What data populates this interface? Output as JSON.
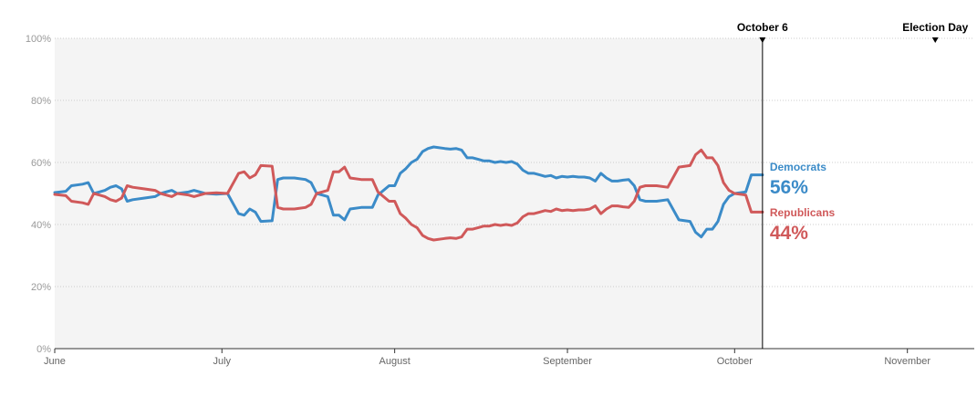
{
  "chart_data": {
    "type": "line",
    "x_axis_type": "date",
    "x_range": [
      "2018-06-01",
      "2018-11-13"
    ],
    "ylim": [
      0,
      100
    ],
    "y_unit": "%",
    "grid": true,
    "y_ticks": [
      {
        "value": 0,
        "label": "0%"
      },
      {
        "value": 20,
        "label": "20%"
      },
      {
        "value": 40,
        "label": "40%"
      },
      {
        "value": 60,
        "label": "60%"
      },
      {
        "value": 80,
        "label": "80%"
      },
      {
        "value": 100,
        "label": "100%"
      }
    ],
    "x_ticks": [
      {
        "date": "2018-06-01",
        "label": "June"
      },
      {
        "date": "2018-07-01",
        "label": "July"
      },
      {
        "date": "2018-08-01",
        "label": "August"
      },
      {
        "date": "2018-09-01",
        "label": "September"
      },
      {
        "date": "2018-10-01",
        "label": "October"
      },
      {
        "date": "2018-11-01",
        "label": "November"
      }
    ],
    "markers": [
      {
        "date": "2018-10-06",
        "label": "October 6"
      },
      {
        "date": "2018-11-06",
        "label": "Election Day"
      }
    ],
    "shaded_until": "2018-10-06",
    "series": [
      {
        "name": "Democrats",
        "final_label": "56%",
        "color": "#3b8bc8",
        "values": [
          [
            "2018-06-01",
            50.3
          ],
          [
            "2018-06-03",
            50.7
          ],
          [
            "2018-06-04",
            52.5
          ],
          [
            "2018-06-06",
            53.0
          ],
          [
            "2018-06-07",
            53.5
          ],
          [
            "2018-06-08",
            50.0
          ],
          [
            "2018-06-09",
            50.5
          ],
          [
            "2018-06-10",
            51.0
          ],
          [
            "2018-06-11",
            52.0
          ],
          [
            "2018-06-12",
            52.5
          ],
          [
            "2018-06-13",
            51.5
          ],
          [
            "2018-06-14",
            47.5
          ],
          [
            "2018-06-15",
            48.0
          ],
          [
            "2018-06-17",
            48.5
          ],
          [
            "2018-06-19",
            49.0
          ],
          [
            "2018-06-20",
            50.0
          ],
          [
            "2018-06-22",
            51.0
          ],
          [
            "2018-06-23",
            50.0
          ],
          [
            "2018-06-25",
            50.5
          ],
          [
            "2018-06-26",
            51.0
          ],
          [
            "2018-06-28",
            50.0
          ],
          [
            "2018-06-30",
            49.8
          ],
          [
            "2018-07-02",
            50.0
          ],
          [
            "2018-07-04",
            43.5
          ],
          [
            "2018-07-05",
            43.0
          ],
          [
            "2018-07-06",
            45.0
          ],
          [
            "2018-07-07",
            44.0
          ],
          [
            "2018-07-08",
            41.0
          ],
          [
            "2018-07-10",
            41.2
          ],
          [
            "2018-07-11",
            54.5
          ],
          [
            "2018-07-12",
            55.0
          ],
          [
            "2018-07-14",
            55.0
          ],
          [
            "2018-07-16",
            54.5
          ],
          [
            "2018-07-17",
            53.5
          ],
          [
            "2018-07-18",
            50.0
          ],
          [
            "2018-07-19",
            49.5
          ],
          [
            "2018-07-20",
            49.0
          ],
          [
            "2018-07-21",
            43.0
          ],
          [
            "2018-07-22",
            43.0
          ],
          [
            "2018-07-23",
            41.5
          ],
          [
            "2018-07-24",
            45.0
          ],
          [
            "2018-07-26",
            45.5
          ],
          [
            "2018-07-28",
            45.5
          ],
          [
            "2018-07-29",
            49.5
          ],
          [
            "2018-07-31",
            52.5
          ],
          [
            "2018-08-01",
            52.5
          ],
          [
            "2018-08-02",
            56.5
          ],
          [
            "2018-08-03",
            58.0
          ],
          [
            "2018-08-04",
            60.0
          ],
          [
            "2018-08-05",
            61.0
          ],
          [
            "2018-08-06",
            63.5
          ],
          [
            "2018-08-07",
            64.5
          ],
          [
            "2018-08-08",
            65.0
          ],
          [
            "2018-08-10",
            64.5
          ],
          [
            "2018-08-11",
            64.3
          ],
          [
            "2018-08-12",
            64.5
          ],
          [
            "2018-08-13",
            64.0
          ],
          [
            "2018-08-14",
            61.5
          ],
          [
            "2018-08-15",
            61.5
          ],
          [
            "2018-08-16",
            61.0
          ],
          [
            "2018-08-17",
            60.5
          ],
          [
            "2018-08-18",
            60.5
          ],
          [
            "2018-08-19",
            60.0
          ],
          [
            "2018-08-20",
            60.3
          ],
          [
            "2018-08-21",
            60.0
          ],
          [
            "2018-08-22",
            60.3
          ],
          [
            "2018-08-23",
            59.5
          ],
          [
            "2018-08-24",
            57.5
          ],
          [
            "2018-08-25",
            56.5
          ],
          [
            "2018-08-26",
            56.5
          ],
          [
            "2018-08-27",
            56.0
          ],
          [
            "2018-08-28",
            55.5
          ],
          [
            "2018-08-29",
            55.8
          ],
          [
            "2018-08-30",
            55.0
          ],
          [
            "2018-08-31",
            55.5
          ],
          [
            "2018-09-01",
            55.3
          ],
          [
            "2018-09-02",
            55.5
          ],
          [
            "2018-09-03",
            55.3
          ],
          [
            "2018-09-04",
            55.3
          ],
          [
            "2018-09-05",
            55.0
          ],
          [
            "2018-09-06",
            54.0
          ],
          [
            "2018-09-07",
            56.5
          ],
          [
            "2018-09-08",
            55.0
          ],
          [
            "2018-09-09",
            54.0
          ],
          [
            "2018-09-10",
            54.0
          ],
          [
            "2018-09-11",
            54.3
          ],
          [
            "2018-09-12",
            54.5
          ],
          [
            "2018-09-13",
            52.5
          ],
          [
            "2018-09-14",
            48.0
          ],
          [
            "2018-09-15",
            47.5
          ],
          [
            "2018-09-17",
            47.5
          ],
          [
            "2018-09-19",
            48.0
          ],
          [
            "2018-09-21",
            41.5
          ],
          [
            "2018-09-23",
            41.0
          ],
          [
            "2018-09-24",
            37.5
          ],
          [
            "2018-09-25",
            36.0
          ],
          [
            "2018-09-26",
            38.5
          ],
          [
            "2018-09-27",
            38.5
          ],
          [
            "2018-09-28",
            41.0
          ],
          [
            "2018-09-29",
            46.5
          ],
          [
            "2018-09-30",
            49.0
          ],
          [
            "2018-10-01",
            50.0
          ],
          [
            "2018-10-03",
            50.5
          ],
          [
            "2018-10-04",
            56.0
          ],
          [
            "2018-10-06",
            56.0
          ]
        ]
      },
      {
        "name": "Republicans",
        "final_label": "44%",
        "color": "#d0595a",
        "values": [
          [
            "2018-06-01",
            49.7
          ],
          [
            "2018-06-03",
            49.3
          ],
          [
            "2018-06-04",
            47.5
          ],
          [
            "2018-06-06",
            47.0
          ],
          [
            "2018-06-07",
            46.5
          ],
          [
            "2018-06-08",
            50.0
          ],
          [
            "2018-06-09",
            49.5
          ],
          [
            "2018-06-10",
            49.0
          ],
          [
            "2018-06-11",
            48.0
          ],
          [
            "2018-06-12",
            47.5
          ],
          [
            "2018-06-13",
            48.5
          ],
          [
            "2018-06-14",
            52.5
          ],
          [
            "2018-06-15",
            52.0
          ],
          [
            "2018-06-17",
            51.5
          ],
          [
            "2018-06-19",
            51.0
          ],
          [
            "2018-06-20",
            50.0
          ],
          [
            "2018-06-22",
            49.0
          ],
          [
            "2018-06-23",
            50.0
          ],
          [
            "2018-06-25",
            49.5
          ],
          [
            "2018-06-26",
            49.0
          ],
          [
            "2018-06-28",
            50.0
          ],
          [
            "2018-06-30",
            50.2
          ],
          [
            "2018-07-02",
            50.0
          ],
          [
            "2018-07-04",
            56.5
          ],
          [
            "2018-07-05",
            57.0
          ],
          [
            "2018-07-06",
            55.0
          ],
          [
            "2018-07-07",
            56.0
          ],
          [
            "2018-07-08",
            59.0
          ],
          [
            "2018-07-10",
            58.8
          ],
          [
            "2018-07-11",
            45.5
          ],
          [
            "2018-07-12",
            45.0
          ],
          [
            "2018-07-14",
            45.0
          ],
          [
            "2018-07-16",
            45.5
          ],
          [
            "2018-07-17",
            46.5
          ],
          [
            "2018-07-18",
            50.0
          ],
          [
            "2018-07-19",
            50.5
          ],
          [
            "2018-07-20",
            51.0
          ],
          [
            "2018-07-21",
            57.0
          ],
          [
            "2018-07-22",
            57.0
          ],
          [
            "2018-07-23",
            58.5
          ],
          [
            "2018-07-24",
            55.0
          ],
          [
            "2018-07-26",
            54.5
          ],
          [
            "2018-07-28",
            54.5
          ],
          [
            "2018-07-29",
            50.5
          ],
          [
            "2018-07-31",
            47.5
          ],
          [
            "2018-08-01",
            47.5
          ],
          [
            "2018-08-02",
            43.5
          ],
          [
            "2018-08-03",
            42.0
          ],
          [
            "2018-08-04",
            40.0
          ],
          [
            "2018-08-05",
            39.0
          ],
          [
            "2018-08-06",
            36.5
          ],
          [
            "2018-08-07",
            35.5
          ],
          [
            "2018-08-08",
            35.0
          ],
          [
            "2018-08-10",
            35.5
          ],
          [
            "2018-08-11",
            35.7
          ],
          [
            "2018-08-12",
            35.5
          ],
          [
            "2018-08-13",
            36.0
          ],
          [
            "2018-08-14",
            38.5
          ],
          [
            "2018-08-15",
            38.5
          ],
          [
            "2018-08-16",
            39.0
          ],
          [
            "2018-08-17",
            39.5
          ],
          [
            "2018-08-18",
            39.5
          ],
          [
            "2018-08-19",
            40.0
          ],
          [
            "2018-08-20",
            39.7
          ],
          [
            "2018-08-21",
            40.0
          ],
          [
            "2018-08-22",
            39.7
          ],
          [
            "2018-08-23",
            40.5
          ],
          [
            "2018-08-24",
            42.5
          ],
          [
            "2018-08-25",
            43.5
          ],
          [
            "2018-08-26",
            43.5
          ],
          [
            "2018-08-27",
            44.0
          ],
          [
            "2018-08-28",
            44.5
          ],
          [
            "2018-08-29",
            44.2
          ],
          [
            "2018-08-30",
            45.0
          ],
          [
            "2018-08-31",
            44.5
          ],
          [
            "2018-09-01",
            44.7
          ],
          [
            "2018-09-02",
            44.5
          ],
          [
            "2018-09-03",
            44.7
          ],
          [
            "2018-09-04",
            44.7
          ],
          [
            "2018-09-05",
            45.0
          ],
          [
            "2018-09-06",
            46.0
          ],
          [
            "2018-09-07",
            43.5
          ],
          [
            "2018-09-08",
            45.0
          ],
          [
            "2018-09-09",
            46.0
          ],
          [
            "2018-09-10",
            46.0
          ],
          [
            "2018-09-11",
            45.7
          ],
          [
            "2018-09-12",
            45.5
          ],
          [
            "2018-09-13",
            47.5
          ],
          [
            "2018-09-14",
            52.0
          ],
          [
            "2018-09-15",
            52.5
          ],
          [
            "2018-09-17",
            52.5
          ],
          [
            "2018-09-19",
            52.0
          ],
          [
            "2018-09-21",
            58.5
          ],
          [
            "2018-09-23",
            59.0
          ],
          [
            "2018-09-24",
            62.5
          ],
          [
            "2018-09-25",
            64.0
          ],
          [
            "2018-09-26",
            61.5
          ],
          [
            "2018-09-27",
            61.5
          ],
          [
            "2018-09-28",
            59.0
          ],
          [
            "2018-09-29",
            53.5
          ],
          [
            "2018-09-30",
            51.0
          ],
          [
            "2018-10-01",
            50.0
          ],
          [
            "2018-10-03",
            49.5
          ],
          [
            "2018-10-04",
            44.0
          ],
          [
            "2018-10-06",
            44.0
          ]
        ]
      }
    ]
  }
}
